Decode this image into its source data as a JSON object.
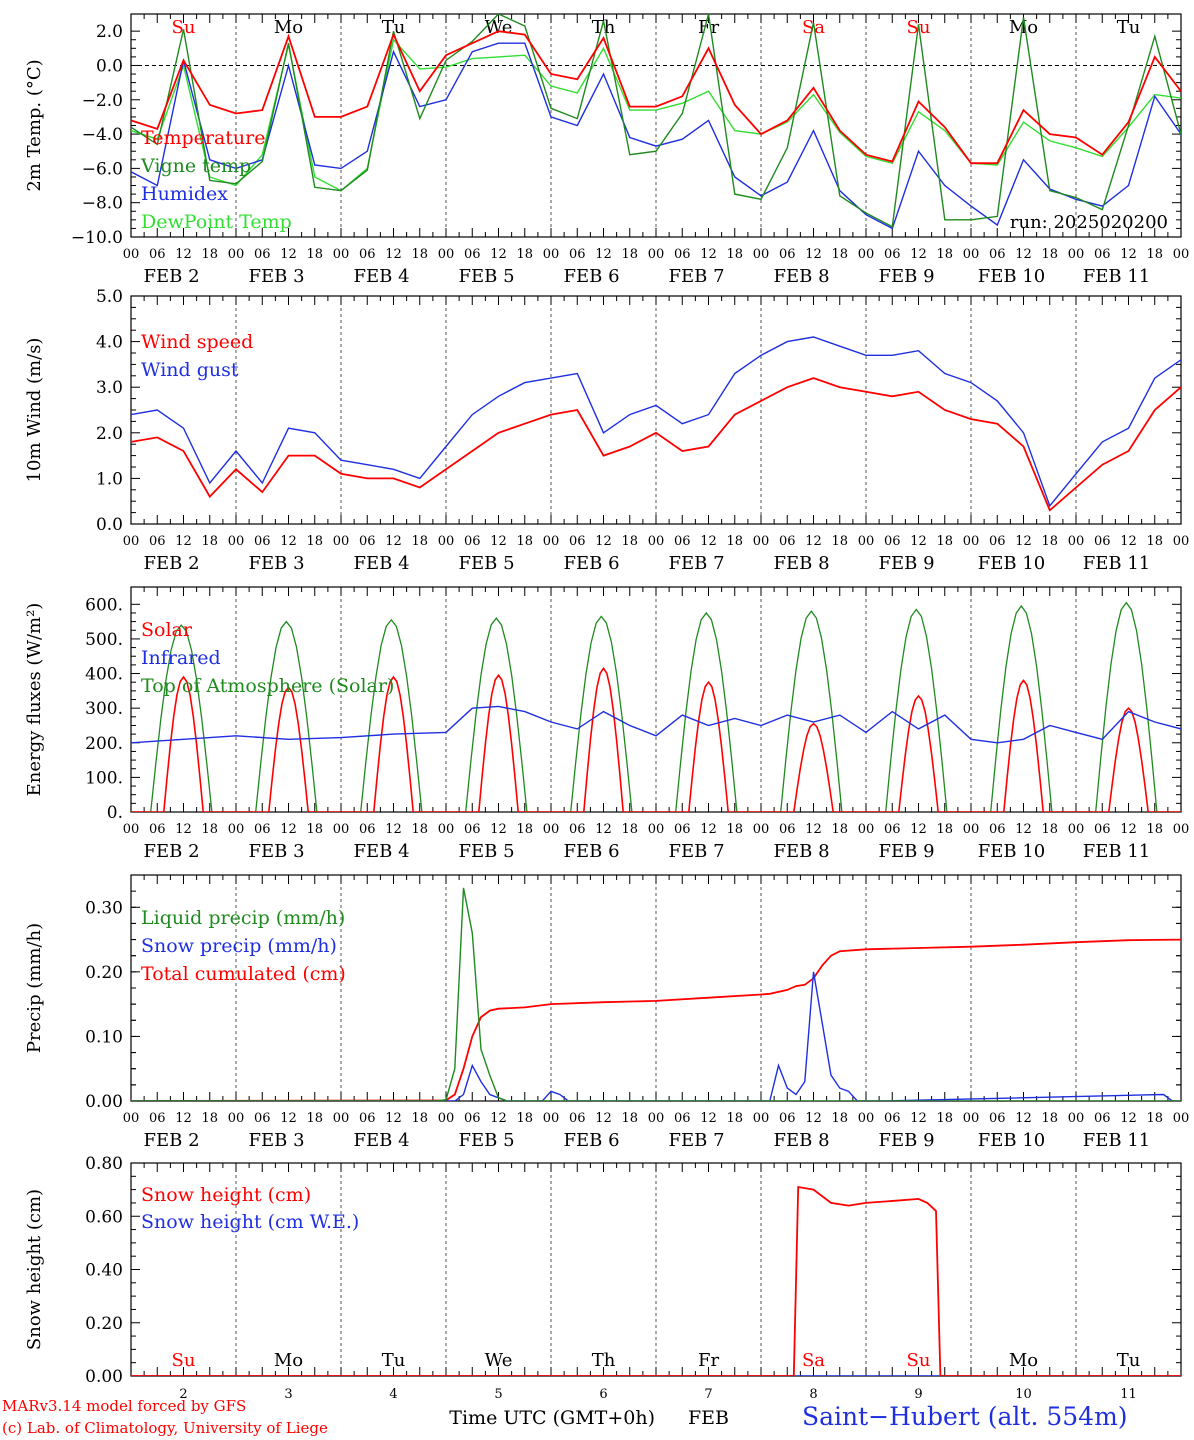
{
  "colors": {
    "red": "#ff0000",
    "green": "#1f8a1f",
    "blue": "#1f2fe0",
    "lightgreen": "#33dd33",
    "axis": "#000000"
  },
  "days": {
    "weekdays": [
      "Su",
      "Mo",
      "Tu",
      "We",
      "Th",
      "Fr",
      "Sa",
      "Su",
      "Mo",
      "Tu"
    ],
    "weekend_flags": [
      true,
      false,
      false,
      false,
      false,
      false,
      true,
      true,
      false,
      false
    ],
    "dates": [
      "FEB  2",
      "FEB  3",
      "FEB  4",
      "FEB  5",
      "FEB  6",
      "FEB  7",
      "FEB  8",
      "FEB  9",
      "FEB 10",
      "FEB 11"
    ],
    "day_numbers": [
      "2",
      "3",
      "4",
      "5",
      "6",
      "7",
      "8",
      "9",
      "10",
      "11"
    ],
    "hour_ticks": [
      "00",
      "06",
      "12",
      "18"
    ],
    "final_tick": "00"
  },
  "chart_data": [
    {
      "id": "temperature",
      "type": "line",
      "ylabel": "2m Temp. (°C)",
      "ylim": [
        -10,
        3
      ],
      "yticks": [
        -10,
        -8,
        -6,
        -4,
        -2,
        0,
        2
      ],
      "ytick_labels": [
        "−10.0",
        "−8.0",
        "−6.0",
        "−4.0",
        "−2.0",
        "0.0",
        "2.0"
      ],
      "zero_line": true,
      "annotation": "run: 2025020200",
      "x_hours": [
        0,
        6,
        12,
        18,
        24,
        30,
        36,
        42,
        48,
        54,
        60,
        66,
        72,
        78,
        84,
        90,
        96,
        102,
        108,
        114,
        120,
        126,
        132,
        138,
        144,
        150,
        156,
        162,
        168,
        174,
        180,
        186,
        192,
        198,
        204,
        210,
        216,
        222,
        228,
        234,
        240
      ],
      "series": [
        {
          "name": "Temperature",
          "color": "red",
          "values": [
            -3.2,
            -3.7,
            0.3,
            -2.3,
            -2.8,
            -2.6,
            1.7,
            -3.0,
            -3.0,
            -2.4,
            1.8,
            -1.5,
            0.6,
            1.3,
            2.0,
            1.8,
            -0.5,
            -0.8,
            1.6,
            -2.4,
            -2.4,
            -1.8,
            1.0,
            -2.3,
            -4.0,
            -3.2,
            -1.3,
            -3.8,
            -5.2,
            -5.6,
            -2.1,
            -3.6,
            -5.7,
            -5.7,
            -2.6,
            -4.0,
            -4.2,
            -5.2,
            -3.3,
            0.5,
            -1.5
          ]
        },
        {
          "name": "Vigne temp",
          "color": "green",
          "values": [
            -3.6,
            -4.6,
            2.1,
            -6.7,
            -6.9,
            -5.6,
            1.3,
            -7.1,
            -7.3,
            -6.1,
            2.0,
            -3.1,
            0.3,
            1.4,
            3.0,
            2.3,
            -2.5,
            -3.1,
            2.6,
            -5.2,
            -5.0,
            -2.8,
            3.0,
            -7.5,
            -7.8,
            -4.8,
            2.5,
            -7.6,
            -8.6,
            -9.4,
            2.4,
            -9.0,
            -9.0,
            -8.8,
            2.8,
            -7.3,
            -7.7,
            -8.4,
            -3.5,
            1.7,
            -4.0
          ]
        },
        {
          "name": "Humidex",
          "color": "blue",
          "values": [
            -6.2,
            -7.0,
            0.3,
            -5.5,
            -6.0,
            -5.5,
            0.0,
            -5.8,
            -6.0,
            -5.0,
            0.8,
            -2.4,
            -2.0,
            0.8,
            1.3,
            1.3,
            -3.0,
            -3.5,
            -0.5,
            -4.2,
            -4.7,
            -4.3,
            -3.2,
            -6.5,
            -7.6,
            -6.8,
            -3.8,
            -7.3,
            -8.7,
            -9.5,
            -5.0,
            -7.0,
            -8.2,
            -9.3,
            -5.5,
            -7.2,
            -7.8,
            -8.2,
            -7.0,
            -1.8,
            -4.0
          ]
        },
        {
          "name": "DewPoint Temp",
          "color": "lightgreen",
          "values": [
            -3.8,
            -4.3,
            0.0,
            -6.5,
            -7.0,
            -5.2,
            1.2,
            -6.5,
            -7.3,
            -6.0,
            1.5,
            -0.2,
            -0.1,
            0.4,
            0.5,
            0.6,
            -1.2,
            -1.6,
            1.0,
            -2.6,
            -2.6,
            -2.2,
            -1.5,
            -3.8,
            -4.0,
            -3.3,
            -1.7,
            -3.9,
            -5.3,
            -5.7,
            -2.7,
            -3.8,
            -5.7,
            -5.8,
            -3.3,
            -4.4,
            -4.8,
            -5.3,
            -3.6,
            -1.7,
            -1.9
          ]
        }
      ]
    },
    {
      "id": "wind",
      "type": "line",
      "ylabel": "10m Wind (m/s)",
      "ylim": [
        0,
        5
      ],
      "yticks": [
        0,
        1,
        2,
        3,
        4,
        5
      ],
      "ytick_labels": [
        "0.0",
        "1.0",
        "2.0",
        "3.0",
        "4.0",
        "5.0"
      ],
      "x_hours": [
        0,
        6,
        12,
        18,
        24,
        30,
        36,
        42,
        48,
        54,
        60,
        66,
        72,
        78,
        84,
        90,
        96,
        102,
        108,
        114,
        120,
        126,
        132,
        138,
        144,
        150,
        156,
        162,
        168,
        174,
        180,
        186,
        192,
        198,
        204,
        210,
        216,
        222,
        228,
        234,
        240
      ],
      "series": [
        {
          "name": "Wind speed",
          "color": "red",
          "values": [
            1.8,
            1.9,
            1.6,
            0.6,
            1.2,
            0.7,
            1.5,
            1.5,
            1.1,
            1.0,
            1.0,
            0.8,
            1.2,
            1.6,
            2.0,
            2.2,
            2.4,
            2.5,
            1.5,
            1.7,
            2.0,
            1.6,
            1.7,
            2.4,
            2.7,
            3.0,
            3.2,
            3.0,
            2.9,
            2.8,
            2.9,
            2.5,
            2.3,
            2.2,
            1.7,
            0.3,
            0.8,
            1.3,
            1.6,
            2.5,
            3.0
          ]
        },
        {
          "name": "Wind gust",
          "color": "blue",
          "values": [
            2.4,
            2.5,
            2.1,
            0.9,
            1.6,
            0.9,
            2.1,
            2.0,
            1.4,
            1.3,
            1.2,
            1.0,
            1.7,
            2.4,
            2.8,
            3.1,
            3.2,
            3.3,
            2.0,
            2.4,
            2.6,
            2.2,
            2.4,
            3.3,
            3.7,
            4.0,
            4.1,
            3.9,
            3.7,
            3.7,
            3.8,
            3.3,
            3.1,
            2.7,
            2.0,
            0.4,
            1.1,
            1.8,
            2.1,
            3.2,
            3.6
          ]
        }
      ]
    },
    {
      "id": "energy",
      "type": "line",
      "ylabel": "Energy fluxes (W/m²)",
      "ylim": [
        0,
        650
      ],
      "yticks": [
        0,
        100,
        200,
        300,
        400,
        500,
        600
      ],
      "ytick_labels": [
        "0.",
        "100.",
        "200.",
        "300.",
        "400.",
        "500.",
        "600."
      ],
      "day_peaks": {
        "Solar": [
          390,
          360,
          390,
          395,
          415,
          375,
          255,
          335,
          380,
          300
        ],
        "Top of Atmosphere (Solar)": [
          540,
          550,
          555,
          560,
          565,
          575,
          580,
          585,
          595,
          605
        ]
      },
      "infrared": {
        "x_hours": [
          0,
          12,
          24,
          36,
          48,
          60,
          72,
          78,
          84,
          90,
          96,
          102,
          108,
          114,
          120,
          126,
          132,
          138,
          144,
          150,
          156,
          162,
          168,
          174,
          180,
          186,
          192,
          198,
          204,
          210,
          216,
          222,
          228,
          234,
          240
        ],
        "values": [
          200,
          210,
          220,
          210,
          215,
          225,
          230,
          300,
          305,
          290,
          260,
          240,
          290,
          250,
          220,
          280,
          250,
          270,
          250,
          280,
          260,
          280,
          230,
          290,
          240,
          280,
          210,
          200,
          210,
          250,
          230,
          210,
          290,
          260,
          240
        ]
      },
      "series": [
        {
          "name": "Solar",
          "color": "red"
        },
        {
          "name": "Infrared",
          "color": "blue"
        },
        {
          "name": "Top of Atmosphere (Solar)",
          "color": "green"
        }
      ]
    },
    {
      "id": "precip",
      "type": "line",
      "ylabel": "Precip (mm/h)",
      "ylim": [
        0,
        0.35
      ],
      "yticks": [
        0,
        0.1,
        0.2,
        0.3
      ],
      "ytick_labels": [
        "0.00",
        "0.10",
        "0.20",
        "0.30"
      ],
      "series": [
        {
          "name": "Liquid precip (mm/h)",
          "color": "green",
          "x_hours": [
            0,
            70,
            72,
            74,
            76,
            78,
            80,
            82,
            84,
            86,
            90,
            240
          ],
          "values": [
            0,
            0,
            0.002,
            0.05,
            0.33,
            0.26,
            0.08,
            0.04,
            0.005,
            0,
            0,
            0
          ]
        },
        {
          "name": "Snow precip (mm/h)",
          "color": "blue",
          "x_hours": [
            0,
            74,
            76,
            78,
            80,
            82,
            84,
            86,
            94,
            96,
            98,
            100,
            112,
            146,
            148,
            150,
            152,
            154,
            156,
            158,
            160,
            162,
            164,
            166,
            172,
            236,
            238,
            240
          ],
          "values": [
            0,
            0,
            0.01,
            0.055,
            0.03,
            0.01,
            0.005,
            0,
            0,
            0.015,
            0.01,
            0,
            0,
            0,
            0.055,
            0.02,
            0.01,
            0.03,
            0.2,
            0.12,
            0.04,
            0.02,
            0.015,
            0,
            0,
            0.01,
            0,
            0
          ]
        },
        {
          "name": "Total cumulated (cm)",
          "color": "red",
          "x_hours": [
            0,
            72,
            74,
            76,
            78,
            80,
            82,
            84,
            90,
            96,
            108,
            120,
            132,
            144,
            146,
            150,
            152,
            154,
            156,
            158,
            160,
            162,
            168,
            180,
            192,
            204,
            216,
            228,
            240
          ],
          "values": [
            0,
            0.001,
            0.01,
            0.05,
            0.1,
            0.13,
            0.14,
            0.143,
            0.145,
            0.15,
            0.153,
            0.155,
            0.16,
            0.165,
            0.166,
            0.172,
            0.178,
            0.18,
            0.19,
            0.21,
            0.225,
            0.232,
            0.235,
            0.237,
            0.239,
            0.242,
            0.246,
            0.249,
            0.25
          ]
        }
      ]
    },
    {
      "id": "snow",
      "type": "line",
      "ylabel": "Snow height (cm)",
      "ylim": [
        0,
        0.8
      ],
      "yticks": [
        0,
        0.2,
        0.4,
        0.6,
        0.8
      ],
      "ytick_labels": [
        "0.00",
        "0.20",
        "0.40",
        "0.60",
        "0.80"
      ],
      "xlabel": "Time UTC (GMT+0h)",
      "xlabel_suffix": "FEB",
      "series": [
        {
          "name": "Snow height (cm)",
          "color": "red",
          "x_hours": [
            0,
            151.5,
            152.5,
            156,
            160,
            164,
            168,
            176,
            180,
            182,
            184,
            185,
            240
          ],
          "values": [
            0,
            0,
            0.71,
            0.7,
            0.65,
            0.64,
            0.65,
            0.66,
            0.665,
            0.65,
            0.62,
            0,
            0
          ]
        },
        {
          "name": "Snow height (cm W.E.)",
          "color": "blue",
          "x_hours": [
            0,
            240
          ],
          "values": [
            0,
            0
          ]
        }
      ]
    }
  ],
  "footer": {
    "model_line": "MARv3.14 model forced by GFS",
    "credit_line": "(c) Lab. of Climatology, University of Liege",
    "station": "Saint−Hubert (alt. 554m)"
  }
}
